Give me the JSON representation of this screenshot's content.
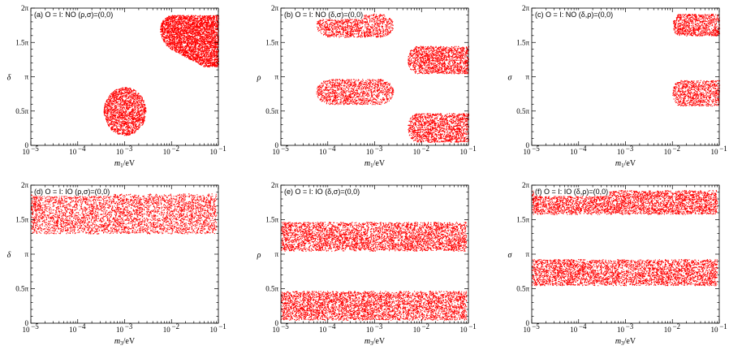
{
  "colors": {
    "points": "#ff0000",
    "axis": "#000000",
    "background": "#ffffff"
  },
  "chart_data": [
    {
      "type": "scatter",
      "id": "a",
      "label": "(a) O = I: NO (ρ,σ)=(0,0)",
      "xlabel": "m1/eV",
      "xlabel_main": "m",
      "xlabel_sub": "1",
      "xlabel_unit": "/eV",
      "ylabel": "δ",
      "xscale": "log",
      "xlim": [
        1e-05,
        0.1
      ],
      "ylim": [
        0,
        2
      ],
      "yunit": "π",
      "xticks": [
        "10",
        "10",
        "10",
        "10",
        "10"
      ],
      "xtick_exponents": [
        "−5",
        "−4",
        "−3",
        "−2",
        "−1"
      ],
      "yticks": [
        "0",
        "0.5π",
        "π",
        "1.5π",
        "2π"
      ],
      "regions": [
        {
          "log_m_range": [
            -3.45,
            -2.55
          ],
          "y_range": [
            0.15,
            0.85
          ],
          "shape": "blob",
          "density": 1800
        },
        {
          "log_m_range": [
            -2.25,
            -1.0
          ],
          "y_range": [
            1.15,
            1.9
          ],
          "shape": "tapered",
          "density": 3800
        }
      ]
    },
    {
      "type": "scatter",
      "id": "b",
      "label": "(b) O = I: NO (δ,σ)=(0,0)",
      "xlabel": "m1/eV",
      "xlabel_main": "m",
      "xlabel_sub": "1",
      "xlabel_unit": "/eV",
      "ylabel": "ρ",
      "xscale": "log",
      "xlim": [
        1e-05,
        0.1
      ],
      "ylim": [
        0,
        2
      ],
      "yunit": "π",
      "xticks": [
        "10",
        "10",
        "10",
        "10",
        "10"
      ],
      "xtick_exponents": [
        "−5",
        "−4",
        "−3",
        "−2",
        "−1"
      ],
      "yticks": [
        "0",
        "0.5π",
        "π",
        "1.5π",
        "2π"
      ],
      "regions": [
        {
          "log_m_range": [
            -4.25,
            -2.6
          ],
          "y_range": [
            1.58,
            1.92
          ],
          "shape": "pill",
          "density": 1200
        },
        {
          "log_m_range": [
            -4.25,
            -2.6
          ],
          "y_range": [
            0.6,
            0.97
          ],
          "shape": "pill",
          "density": 1300
        },
        {
          "log_m_range": [
            -2.3,
            -1.0
          ],
          "y_range": [
            1.05,
            1.45
          ],
          "shape": "rightbox",
          "density": 1500
        },
        {
          "log_m_range": [
            -2.3,
            -1.0
          ],
          "y_range": [
            0.05,
            0.47
          ],
          "shape": "rightbox",
          "density": 1500
        }
      ]
    },
    {
      "type": "scatter",
      "id": "c",
      "label": "(c) O = I: NO (δ,ρ)=(0,0)",
      "xlabel": "m1/eV",
      "xlabel_main": "m",
      "xlabel_sub": "1",
      "xlabel_unit": "/eV",
      "ylabel": "σ",
      "xscale": "log",
      "xlim": [
        1e-05,
        0.1
      ],
      "ylim": [
        0,
        2
      ],
      "yunit": "π",
      "xticks": [
        "10",
        "10",
        "10",
        "10",
        "10"
      ],
      "xtick_exponents": [
        "−5",
        "−4",
        "−3",
        "−2",
        "−1"
      ],
      "yticks": [
        "0",
        "0.5π",
        "π",
        "1.5π",
        "2π"
      ],
      "regions": [
        {
          "log_m_range": [
            -2.0,
            -1.0
          ],
          "y_range": [
            1.6,
            1.92
          ],
          "shape": "rightbox",
          "density": 900
        },
        {
          "log_m_range": [
            -2.0,
            -1.0
          ],
          "y_range": [
            0.58,
            0.95
          ],
          "shape": "rightbox",
          "density": 900
        }
      ]
    },
    {
      "type": "scatter",
      "id": "d",
      "label": "(d) O = I: IO (ρ,σ)=(0,0)",
      "xlabel": "m3/eV",
      "xlabel_main": "m",
      "xlabel_sub": "3",
      "xlabel_unit": "/eV",
      "ylabel": "δ",
      "xscale": "log",
      "xlim": [
        1e-05,
        0.1
      ],
      "ylim": [
        0,
        2
      ],
      "yunit": "π",
      "xticks": [
        "10",
        "10",
        "10",
        "10",
        "10"
      ],
      "xtick_exponents": [
        "−5",
        "−4",
        "−3",
        "−2",
        "−1"
      ],
      "yticks": [
        "0",
        "0.5π",
        "π",
        "1.5π",
        "2π"
      ],
      "regions": [
        {
          "log_m_range": [
            -5.0,
            -1.05
          ],
          "y_range": [
            1.3,
            1.88
          ],
          "shape": "band",
          "density": 4000
        }
      ]
    },
    {
      "type": "scatter",
      "id": "e",
      "label": "(e) O = I: IO (δ,σ)=(0,0)",
      "xlabel": "m3/eV",
      "xlabel_main": "m",
      "xlabel_sub": "3",
      "xlabel_unit": "/eV",
      "ylabel": "ρ",
      "xscale": "log",
      "xlim": [
        1e-05,
        0.1
      ],
      "ylim": [
        0,
        2
      ],
      "yunit": "π",
      "xticks": [
        "10",
        "10",
        "10",
        "10",
        "10"
      ],
      "xtick_exponents": [
        "−5",
        "−4",
        "−3",
        "−2",
        "−1"
      ],
      "yticks": [
        "0",
        "0.5π",
        "π",
        "1.5π",
        "2π"
      ],
      "regions": [
        {
          "log_m_range": [
            -5.0,
            -1.05
          ],
          "y_range": [
            1.05,
            1.47
          ],
          "shape": "band",
          "density": 4000
        },
        {
          "log_m_range": [
            -5.0,
            -1.05
          ],
          "y_range": [
            0.05,
            0.47
          ],
          "shape": "band",
          "density": 4000
        }
      ]
    },
    {
      "type": "scatter",
      "id": "f",
      "label": "(f) O = I: IO (δ,ρ)=(0,0)",
      "xlabel": "m3/eV",
      "xlabel_main": "m",
      "xlabel_sub": "3",
      "xlabel_unit": "/eV",
      "ylabel": "σ",
      "xscale": "log",
      "xlim": [
        1e-05,
        0.1
      ],
      "ylim": [
        0,
        2
      ],
      "yunit": "π",
      "xticks": [
        "10",
        "10",
        "10",
        "10",
        "10"
      ],
      "xtick_exponents": [
        "−5",
        "−4",
        "−3",
        "−2",
        "−1"
      ],
      "yticks": [
        "0",
        "0.5π",
        "π",
        "1.5π",
        "2π"
      ],
      "regions": [
        {
          "log_m_range": [
            -5.0,
            -1.05
          ],
          "y_range": [
            1.58,
            1.93
          ],
          "shape": "band",
          "density": 3600
        },
        {
          "log_m_range": [
            -5.0,
            -1.05
          ],
          "y_range": [
            0.55,
            0.93
          ],
          "shape": "band",
          "density": 3600
        }
      ]
    }
  ]
}
